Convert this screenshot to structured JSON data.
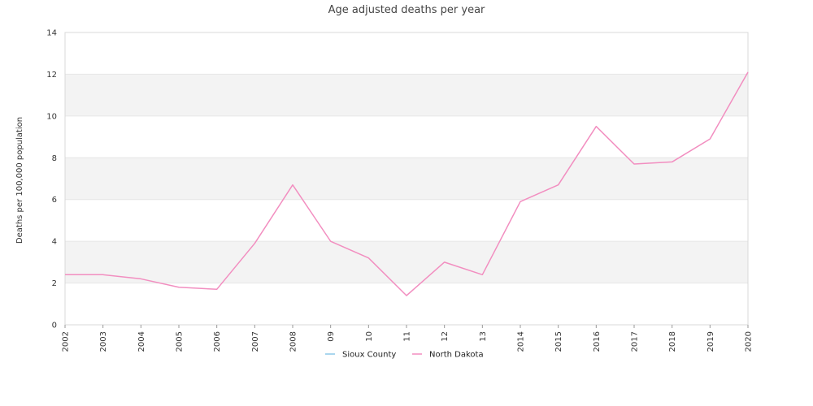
{
  "chart_data": {
    "type": "line",
    "title": "Age adjusted deaths per year",
    "ylabel": "Deaths per 100,000 population",
    "xlabel": "",
    "ylim": [
      0,
      14
    ],
    "yticks": [
      0,
      2,
      4,
      6,
      8,
      10,
      12,
      14
    ],
    "ytick_labels": [
      "0",
      "2",
      "4",
      "6",
      "8",
      "10",
      "12",
      "14"
    ],
    "categories": [
      "2002",
      "2003",
      "2004",
      "2005",
      "2006",
      "2007",
      "2008",
      "09",
      "10",
      "11",
      "12",
      "13",
      "2014",
      "2015",
      "2016",
      "2017",
      "2018",
      "2019",
      "2020"
    ],
    "grid": "alternating horizontal bands",
    "legend_position": "bottom",
    "series": [
      {
        "name": "Sioux County",
        "color": "#8ec8e8",
        "values": [
          null,
          null,
          null,
          null,
          null,
          null,
          null,
          null,
          null,
          null,
          null,
          null,
          null,
          null,
          null,
          null,
          null,
          null,
          null
        ]
      },
      {
        "name": "North Dakota",
        "color": "#f28ec0",
        "values": [
          2.4,
          2.4,
          2.2,
          1.8,
          1.7,
          3.9,
          6.7,
          4.0,
          3.2,
          1.4,
          3.0,
          2.4,
          5.9,
          6.7,
          9.5,
          7.7,
          7.8,
          8.9,
          12.1
        ]
      }
    ]
  }
}
